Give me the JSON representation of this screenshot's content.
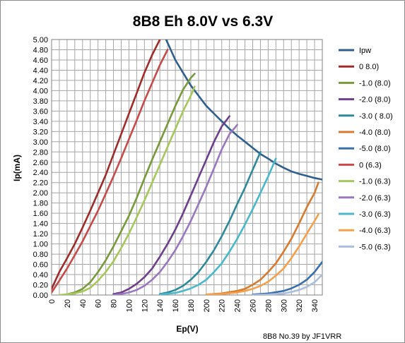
{
  "chart_data": {
    "type": "line",
    "title": "8B8 Eh 8.0V vs 6.3V",
    "xlabel": "Ep(V)",
    "ylabel": "Ip(mA)",
    "xlim": [
      0,
      350
    ],
    "ylim": [
      0,
      5.0
    ],
    "x_ticks": [
      "0",
      "20",
      "40",
      "60",
      "80",
      "100",
      "120",
      "140",
      "160",
      "180",
      "200",
      "220",
      "240",
      "260",
      "280",
      "300",
      "320",
      "340"
    ],
    "y_ticks": [
      "0.00",
      "0.20",
      "0.40",
      "0.60",
      "0.80",
      "1.00",
      "1.20",
      "1.40",
      "1.60",
      "1.80",
      "2.00",
      "2.20",
      "2.40",
      "2.60",
      "2.80",
      "3.00",
      "3.20",
      "3.40",
      "3.60",
      "3.80",
      "4.00",
      "4.20",
      "4.40",
      "4.60",
      "4.80",
      "5.00"
    ],
    "grid": true,
    "legend_position": "right",
    "footer": "8B8 No.39  by JF1VRR",
    "series": [
      {
        "name": "Ipw",
        "color": "#2e5f8f",
        "points": [
          [
            148,
            5.0
          ],
          [
            160,
            4.6
          ],
          [
            170,
            4.35
          ],
          [
            180,
            4.1
          ],
          [
            190,
            3.9
          ],
          [
            200,
            3.7
          ],
          [
            210,
            3.55
          ],
          [
            220,
            3.4
          ],
          [
            230,
            3.25
          ],
          [
            240,
            3.12
          ],
          [
            250,
            3.0
          ],
          [
            260,
            2.88
          ],
          [
            270,
            2.76
          ],
          [
            280,
            2.67
          ],
          [
            290,
            2.57
          ],
          [
            300,
            2.49
          ],
          [
            310,
            2.42
          ],
          [
            320,
            2.37
          ],
          [
            330,
            2.33
          ],
          [
            340,
            2.29
          ],
          [
            350,
            2.26
          ]
        ]
      },
      {
        "name": "0 8.0)",
        "color": "#a02b2b",
        "points": [
          [
            0,
            0.12
          ],
          [
            10,
            0.45
          ],
          [
            20,
            0.72
          ],
          [
            30,
            1.0
          ],
          [
            40,
            1.32
          ],
          [
            50,
            1.65
          ],
          [
            60,
            2.0
          ],
          [
            70,
            2.35
          ],
          [
            80,
            2.75
          ],
          [
            90,
            3.15
          ],
          [
            100,
            3.55
          ],
          [
            110,
            3.95
          ],
          [
            120,
            4.35
          ],
          [
            130,
            4.7
          ],
          [
            140,
            5.0
          ]
        ]
      },
      {
        "name": "-1.0 (8.0)",
        "color": "#779a3a",
        "points": [
          [
            16,
            0.0
          ],
          [
            30,
            0.05
          ],
          [
            40,
            0.12
          ],
          [
            50,
            0.25
          ],
          [
            60,
            0.45
          ],
          [
            70,
            0.68
          ],
          [
            80,
            0.95
          ],
          [
            90,
            1.25
          ],
          [
            100,
            1.55
          ],
          [
            110,
            1.9
          ],
          [
            120,
            2.28
          ],
          [
            130,
            2.65
          ],
          [
            140,
            3.0
          ],
          [
            150,
            3.35
          ],
          [
            160,
            3.7
          ],
          [
            170,
            4.02
          ],
          [
            180,
            4.25
          ],
          [
            185,
            4.33
          ]
        ]
      },
      {
        "name": "-2.0 (8.0)",
        "color": "#6e3f8c",
        "points": [
          [
            80,
            0.02
          ],
          [
            90,
            0.05
          ],
          [
            100,
            0.12
          ],
          [
            110,
            0.22
          ],
          [
            120,
            0.35
          ],
          [
            130,
            0.52
          ],
          [
            140,
            0.75
          ],
          [
            150,
            1.0
          ],
          [
            160,
            1.28
          ],
          [
            170,
            1.6
          ],
          [
            180,
            1.95
          ],
          [
            190,
            2.3
          ],
          [
            200,
            2.65
          ],
          [
            210,
            3.0
          ],
          [
            220,
            3.3
          ],
          [
            230,
            3.5
          ]
        ]
      },
      {
        "name": "-3.0 ( 8.0)",
        "color": "#2e8a9a",
        "points": [
          [
            140,
            0.02
          ],
          [
            150,
            0.05
          ],
          [
            160,
            0.1
          ],
          [
            170,
            0.18
          ],
          [
            180,
            0.3
          ],
          [
            190,
            0.45
          ],
          [
            200,
            0.65
          ],
          [
            210,
            0.88
          ],
          [
            220,
            1.15
          ],
          [
            230,
            1.45
          ],
          [
            240,
            1.78
          ],
          [
            250,
            2.1
          ],
          [
            260,
            2.45
          ],
          [
            270,
            2.8
          ]
        ]
      },
      {
        "name": "-4.0 (8.0)",
        "color": "#d97a2e",
        "points": [
          [
            200,
            0.01
          ],
          [
            220,
            0.03
          ],
          [
            240,
            0.08
          ],
          [
            250,
            0.12
          ],
          [
            260,
            0.2
          ],
          [
            270,
            0.3
          ],
          [
            280,
            0.45
          ],
          [
            290,
            0.62
          ],
          [
            300,
            0.85
          ],
          [
            310,
            1.1
          ],
          [
            320,
            1.4
          ],
          [
            330,
            1.72
          ],
          [
            340,
            2.0
          ],
          [
            345,
            2.2
          ]
        ]
      },
      {
        "name": "-5.0 (8.0)",
        "color": "#3a6fae",
        "points": [
          [
            260,
            0.01
          ],
          [
            280,
            0.03
          ],
          [
            300,
            0.08
          ],
          [
            310,
            0.13
          ],
          [
            320,
            0.2
          ],
          [
            330,
            0.3
          ],
          [
            340,
            0.45
          ],
          [
            350,
            0.65
          ]
        ]
      },
      {
        "name": "0 (6.3)",
        "color": "#c84a4a",
        "points": [
          [
            0,
            0.05
          ],
          [
            10,
            0.28
          ],
          [
            20,
            0.52
          ],
          [
            30,
            0.78
          ],
          [
            40,
            1.05
          ],
          [
            50,
            1.35
          ],
          [
            60,
            1.65
          ],
          [
            70,
            1.98
          ],
          [
            80,
            2.32
          ],
          [
            90,
            2.68
          ],
          [
            100,
            3.05
          ],
          [
            110,
            3.42
          ],
          [
            120,
            3.8
          ],
          [
            130,
            4.15
          ],
          [
            140,
            4.5
          ],
          [
            150,
            4.8
          ]
        ]
      },
      {
        "name": "-1.0 (6.3)",
        "color": "#a6c85a",
        "points": [
          [
            10,
            0.0
          ],
          [
            30,
            0.03
          ],
          [
            40,
            0.07
          ],
          [
            50,
            0.14
          ],
          [
            60,
            0.28
          ],
          [
            70,
            0.45
          ],
          [
            80,
            0.66
          ],
          [
            90,
            0.92
          ],
          [
            100,
            1.2
          ],
          [
            110,
            1.52
          ],
          [
            120,
            1.85
          ],
          [
            130,
            2.2
          ],
          [
            140,
            2.55
          ],
          [
            150,
            2.9
          ],
          [
            160,
            3.25
          ],
          [
            170,
            3.6
          ],
          [
            180,
            3.9
          ],
          [
            185,
            4.08
          ]
        ]
      },
      {
        "name": "-2.0 (6.3)",
        "color": "#9a78bf",
        "points": [
          [
            80,
            0.0
          ],
          [
            90,
            0.02
          ],
          [
            100,
            0.05
          ],
          [
            110,
            0.1
          ],
          [
            120,
            0.18
          ],
          [
            130,
            0.3
          ],
          [
            140,
            0.45
          ],
          [
            150,
            0.65
          ],
          [
            160,
            0.88
          ],
          [
            170,
            1.15
          ],
          [
            180,
            1.45
          ],
          [
            190,
            1.78
          ],
          [
            200,
            2.12
          ],
          [
            210,
            2.48
          ],
          [
            220,
            2.85
          ],
          [
            230,
            3.15
          ],
          [
            240,
            3.33
          ]
        ]
      },
      {
        "name": "-3.0 (6.3)",
        "color": "#4ab8cc",
        "points": [
          [
            140,
            0.01
          ],
          [
            160,
            0.04
          ],
          [
            170,
            0.08
          ],
          [
            180,
            0.13
          ],
          [
            190,
            0.2
          ],
          [
            200,
            0.3
          ],
          [
            210,
            0.45
          ],
          [
            220,
            0.62
          ],
          [
            230,
            0.85
          ],
          [
            240,
            1.1
          ],
          [
            250,
            1.38
          ],
          [
            260,
            1.68
          ],
          [
            270,
            2.0
          ],
          [
            280,
            2.32
          ],
          [
            290,
            2.67
          ]
        ]
      },
      {
        "name": "-4.0 (6.3)",
        "color": "#f5a04a",
        "points": [
          [
            200,
            0.01
          ],
          [
            220,
            0.02
          ],
          [
            240,
            0.05
          ],
          [
            250,
            0.08
          ],
          [
            260,
            0.12
          ],
          [
            270,
            0.18
          ],
          [
            280,
            0.26
          ],
          [
            290,
            0.38
          ],
          [
            300,
            0.52
          ],
          [
            310,
            0.72
          ],
          [
            320,
            0.95
          ],
          [
            330,
            1.2
          ],
          [
            340,
            1.45
          ],
          [
            345,
            1.58
          ]
        ]
      },
      {
        "name": "-5.0 (6.3)",
        "color": "#a9bfe0",
        "points": [
          [
            260,
            0.0
          ],
          [
            280,
            0.01
          ],
          [
            300,
            0.03
          ],
          [
            310,
            0.06
          ],
          [
            320,
            0.1
          ],
          [
            330,
            0.16
          ],
          [
            340,
            0.25
          ],
          [
            350,
            0.4
          ]
        ]
      }
    ]
  }
}
